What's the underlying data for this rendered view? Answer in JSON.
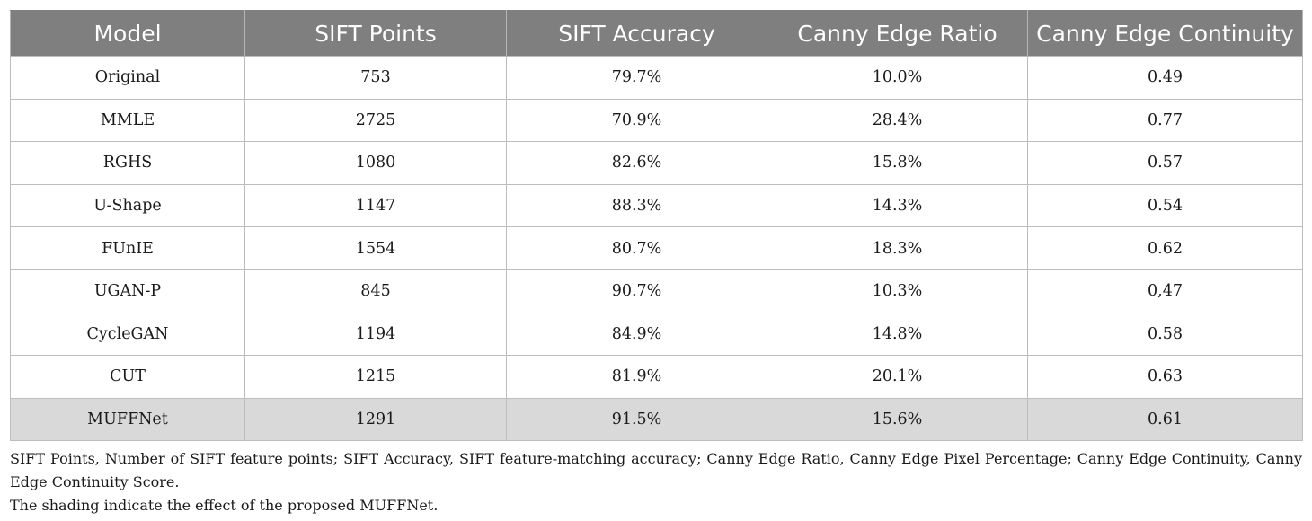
{
  "table": {
    "headers": [
      "Model",
      "SIFT Points",
      "SIFT Accuracy",
      "Canny Edge Ratio",
      "Canny Edge Continuity"
    ],
    "rows": [
      [
        "Original",
        "753",
        "79.7%",
        "10.0%",
        "0.49"
      ],
      [
        "MMLE",
        "2725",
        "70.9%",
        "28.4%",
        "0.77"
      ],
      [
        "RGHS",
        "1080",
        "82.6%",
        "15.8%",
        "0.57"
      ],
      [
        "U-Shape",
        "1147",
        "88.3%",
        "14.3%",
        "0.54"
      ],
      [
        "FUnIE",
        "1554",
        "80.7%",
        "18.3%",
        "0.62"
      ],
      [
        "UGAN-P",
        "845",
        "90.7%",
        "10.3%",
        "0,47"
      ],
      [
        "CycleGAN",
        "1194",
        "84.9%",
        "14.8%",
        "0.58"
      ],
      [
        "CUT",
        "1215",
        "81.9%",
        "20.1%",
        "0.63"
      ],
      [
        "MUFFNet",
        "1291",
        "91.5%",
        "15.6%",
        "0.61"
      ]
    ],
    "header_bg": "#7f7f7f",
    "highlight_bg": "#d9d9d9"
  },
  "notes": {
    "abbreviations": "SIFT Points, Number of SIFT feature points; SIFT Accuracy, SIFT feature-matching accuracy; Canny Edge Ratio, Canny Edge Pixel Percentage; Canny Edge Continuity, Canny Edge Continuity Score.",
    "shading": "The shading indicate the effect of the proposed MUFFNet."
  }
}
